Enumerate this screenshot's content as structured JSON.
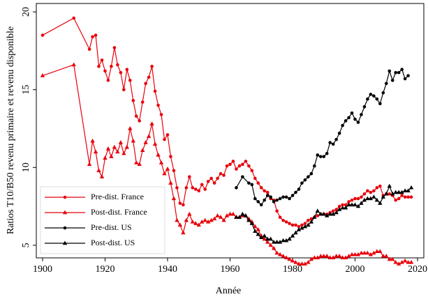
{
  "chart_data": {
    "type": "line",
    "y_label": "Ratios T10/B50 revenu primaire et revenu disponible",
    "x_label": "Année",
    "xlim": [
      1898,
      2022
    ],
    "xticks": [
      1900,
      1920,
      1940,
      1960,
      1980,
      2000,
      2020
    ],
    "ylim": [
      4.19,
      20.54
    ],
    "yticks": [
      5,
      10,
      15,
      20
    ],
    "legend": "lower left",
    "series": [
      {
        "name": "Pre-dist. France",
        "color": "#e8000b",
        "marker": "circle",
        "x": [
          1900,
          1910,
          1915,
          1916,
          1917,
          1918,
          1919,
          1920,
          1921,
          1922,
          1923,
          1924,
          1925,
          1926,
          1927,
          1928,
          1929,
          1930,
          1931,
          1932,
          1933,
          1934,
          1935,
          1936,
          1937,
          1938,
          1939,
          1940,
          1941,
          1942,
          1943,
          1944,
          1945,
          1946,
          1947,
          1948,
          1949,
          1950,
          1951,
          1952,
          1953,
          1954,
          1955,
          1956,
          1957,
          1958,
          1959,
          1960,
          1961,
          1962,
          1963,
          1964,
          1965,
          1966,
          1967,
          1968,
          1969,
          1970,
          1971,
          1972,
          1973,
          1974,
          1975,
          1976,
          1977,
          1978,
          1979,
          1980,
          1981,
          1982,
          1983,
          1984,
          1985,
          1986,
          1987,
          1988,
          1989,
          1990,
          1991,
          1992,
          1993,
          1994,
          1995,
          1996,
          1997,
          1998,
          1999,
          2000,
          2001,
          2002,
          2003,
          2004,
          2005,
          2006,
          2007,
          2008,
          2009,
          2010,
          2011,
          2012,
          2013,
          2014,
          2015,
          2016,
          2017,
          2018
        ],
        "values": [
          18.5,
          19.6,
          17.6,
          18.4,
          18.5,
          16.5,
          16.9,
          16.2,
          15.6,
          16.5,
          17.7,
          16.6,
          16.1,
          15.0,
          16.3,
          15.6,
          14.3,
          13.3,
          13.0,
          14.2,
          15.4,
          15.8,
          16.5,
          14.9,
          14.0,
          13.4,
          11.8,
          12.1,
          10.7,
          9.8,
          8.7,
          7.7,
          7.6,
          8.7,
          9.4,
          8.7,
          8.6,
          8.5,
          8.9,
          8.6,
          9.1,
          9.3,
          9.0,
          9.3,
          9.6,
          9.5,
          10.1,
          10.2,
          10.4,
          9.9,
          10.1,
          10.2,
          10.4,
          10.1,
          9.8,
          9.3,
          9.0,
          8.7,
          8.5,
          8.4,
          8.0,
          7.9,
          7.2,
          6.8,
          6.6,
          6.5,
          6.4,
          6.3,
          6.3,
          6.2,
          6.3,
          6.4,
          6.6,
          6.7,
          6.8,
          6.9,
          7.0,
          7.0,
          7.0,
          7.1,
          7.2,
          7.3,
          7.5,
          7.6,
          7.6,
          7.8,
          7.9,
          8.0,
          8.0,
          8.1,
          8.3,
          8.5,
          8.4,
          8.5,
          8.7,
          8.8,
          8.2,
          8.3,
          8.3,
          8.2,
          7.9,
          8.0,
          8.2,
          8.1,
          8.1,
          8.1
        ]
      },
      {
        "name": "Post-dist. France",
        "color": "#e8000b",
        "marker": "triangle",
        "x": [
          1900,
          1910,
          1915,
          1916,
          1917,
          1918,
          1919,
          1920,
          1921,
          1922,
          1923,
          1924,
          1925,
          1926,
          1927,
          1928,
          1929,
          1930,
          1931,
          1932,
          1933,
          1934,
          1935,
          1936,
          1937,
          1938,
          1939,
          1940,
          1941,
          1942,
          1943,
          1944,
          1945,
          1946,
          1947,
          1948,
          1949,
          1950,
          1951,
          1952,
          1953,
          1954,
          1955,
          1956,
          1957,
          1958,
          1959,
          1960,
          1961,
          1962,
          1963,
          1964,
          1965,
          1966,
          1967,
          1968,
          1969,
          1970,
          1971,
          1972,
          1973,
          1974,
          1975,
          1976,
          1977,
          1978,
          1979,
          1980,
          1981,
          1982,
          1983,
          1984,
          1985,
          1986,
          1987,
          1988,
          1989,
          1990,
          1991,
          1992,
          1993,
          1994,
          1995,
          1996,
          1997,
          1998,
          1999,
          2000,
          2001,
          2002,
          2003,
          2004,
          2005,
          2006,
          2007,
          2008,
          2009,
          2010,
          2011,
          2012,
          2013,
          2014,
          2015,
          2016,
          2017,
          2018
        ],
        "values": [
          15.9,
          16.6,
          10.2,
          11.7,
          11.0,
          9.8,
          9.4,
          10.6,
          11.2,
          10.7,
          11.3,
          11.0,
          11.6,
          10.9,
          11.3,
          12.5,
          11.7,
          10.3,
          10.2,
          11.1,
          11.6,
          12.0,
          12.8,
          11.5,
          10.8,
          10.3,
          9.6,
          9.9,
          9.0,
          8.0,
          6.6,
          6.3,
          5.8,
          6.6,
          7.0,
          6.5,
          6.4,
          6.3,
          6.5,
          6.6,
          6.5,
          6.6,
          6.7,
          6.9,
          6.8,
          6.6,
          6.9,
          7.0,
          7.0,
          6.8,
          6.8,
          6.9,
          6.9,
          6.7,
          6.5,
          6.2,
          6.0,
          5.6,
          5.4,
          5.2,
          5.0,
          4.8,
          4.5,
          4.4,
          4.3,
          4.2,
          4.1,
          4.0,
          3.9,
          3.8,
          3.8,
          3.8,
          3.9,
          4.1,
          4.2,
          4.2,
          4.3,
          4.3,
          4.3,
          4.2,
          4.2,
          4.3,
          4.3,
          4.2,
          4.2,
          4.3,
          4.4,
          4.4,
          4.4,
          4.5,
          4.5,
          4.5,
          4.4,
          4.5,
          4.6,
          4.6,
          4.3,
          4.3,
          4.1,
          4.1,
          3.9,
          3.8,
          3.9,
          4.0,
          3.9,
          3.9
        ]
      },
      {
        "name": "Pre-dist. US",
        "color": "#000000",
        "marker": "circle",
        "x": [
          1962,
          1964,
          1966,
          1967,
          1968,
          1969,
          1970,
          1971,
          1972,
          1973,
          1974,
          1975,
          1976,
          1977,
          1978,
          1979,
          1980,
          1981,
          1982,
          1983,
          1984,
          1985,
          1986,
          1987,
          1988,
          1989,
          1990,
          1991,
          1992,
          1993,
          1994,
          1995,
          1996,
          1997,
          1998,
          1999,
          2000,
          2001,
          2002,
          2003,
          2004,
          2005,
          2006,
          2007,
          2008,
          2009,
          2010,
          2011,
          2012,
          2013,
          2014,
          2015,
          2016,
          2017
        ],
        "values": [
          8.7,
          9.4,
          9.0,
          8.9,
          8.0,
          7.8,
          7.6,
          7.9,
          8.2,
          8.1,
          7.8,
          7.9,
          8.0,
          8.1,
          8.1,
          8.0,
          8.2,
          8.4,
          8.6,
          9.0,
          9.2,
          9.4,
          9.6,
          10.1,
          10.8,
          10.7,
          10.7,
          10.9,
          11.6,
          11.5,
          11.8,
          12.2,
          12.7,
          13.0,
          13.2,
          13.5,
          13.1,
          12.9,
          13.4,
          13.9,
          14.4,
          14.7,
          14.6,
          14.4,
          14.1,
          14.8,
          15.4,
          16.2,
          15.6,
          16.1,
          16.1,
          16.3,
          15.7,
          15.9
        ]
      },
      {
        "name": "Post-dist. US",
        "color": "#000000",
        "marker": "triangle",
        "x": [
          1962,
          1963,
          1964,
          1965,
          1966,
          1967,
          1968,
          1969,
          1970,
          1971,
          1972,
          1973,
          1974,
          1975,
          1976,
          1977,
          1978,
          1979,
          1980,
          1981,
          1982,
          1983,
          1984,
          1985,
          1986,
          1987,
          1988,
          1989,
          1990,
          1991,
          1992,
          1993,
          1994,
          1995,
          1996,
          1997,
          1998,
          1999,
          2000,
          2001,
          2002,
          2003,
          2004,
          2005,
          2006,
          2007,
          2008,
          2009,
          2010,
          2011,
          2012,
          2013,
          2014,
          2015,
          2016,
          2017,
          2018
        ],
        "values": [
          6.8,
          6.8,
          7.0,
          6.9,
          6.6,
          6.4,
          5.9,
          5.7,
          5.5,
          5.6,
          5.4,
          5.4,
          5.2,
          5.2,
          5.2,
          5.3,
          5.3,
          5.4,
          5.6,
          5.8,
          6.0,
          6.1,
          6.2,
          6.3,
          6.5,
          6.8,
          7.2,
          7.0,
          7.0,
          6.9,
          7.0,
          7.0,
          7.1,
          7.3,
          7.4,
          7.4,
          7.6,
          7.6,
          7.6,
          7.5,
          7.7,
          7.9,
          8.0,
          8.0,
          8.1,
          7.9,
          7.7,
          8.1,
          8.3,
          8.8,
          8.3,
          8.4,
          8.4,
          8.4,
          8.5,
          8.5,
          8.7
        ]
      }
    ]
  }
}
